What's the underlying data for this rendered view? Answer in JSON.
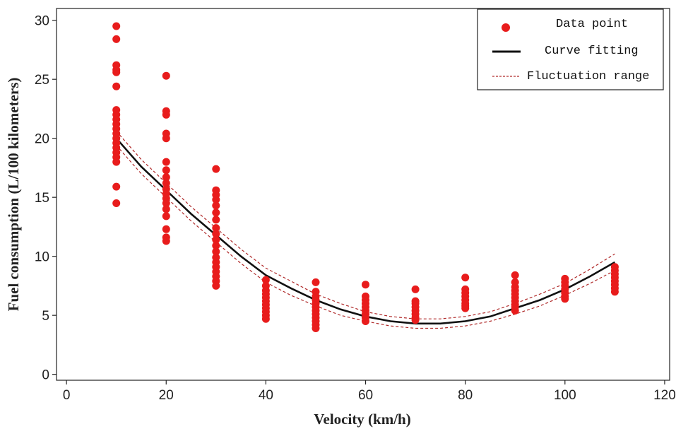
{
  "chart_data": {
    "type": "scatter",
    "xlabel": "Velocity (km/h)",
    "ylabel": "Fuel consumption (L/100 kilometers)",
    "xlim": [
      -2,
      121
    ],
    "ylim": [
      -0.5,
      31
    ],
    "xticks": [
      0,
      20,
      40,
      60,
      80,
      100,
      120
    ],
    "yticks": [
      0,
      5,
      10,
      15,
      20,
      25,
      30
    ],
    "grid": false,
    "legend_position": "top-right",
    "legend": {
      "data_point": "Data point",
      "curve_fitting": "Curve fitting",
      "fluctuation_range": "Fluctuation range"
    },
    "colors": {
      "points": "#e81c1c",
      "curve": "#111111",
      "band": "#b02a2a"
    },
    "series": [
      {
        "name": "Data point",
        "kind": "points",
        "points": [
          [
            10,
            29.5
          ],
          [
            10,
            28.4
          ],
          [
            10,
            26.2
          ],
          [
            10,
            25.8
          ],
          [
            10,
            25.6
          ],
          [
            10,
            24.4
          ],
          [
            10,
            22.4
          ],
          [
            10,
            22.0
          ],
          [
            10,
            21.6
          ],
          [
            10,
            21.2
          ],
          [
            10,
            20.8
          ],
          [
            10,
            20.4
          ],
          [
            10,
            20.0
          ],
          [
            10,
            19.6
          ],
          [
            10,
            19.2
          ],
          [
            10,
            18.8
          ],
          [
            10,
            18.4
          ],
          [
            10,
            18.0
          ],
          [
            10,
            15.9
          ],
          [
            10,
            14.5
          ],
          [
            20,
            25.3
          ],
          [
            20,
            22.3
          ],
          [
            20,
            22.0
          ],
          [
            20,
            20.4
          ],
          [
            20,
            20.0
          ],
          [
            20,
            18.0
          ],
          [
            20,
            17.3
          ],
          [
            20,
            16.7
          ],
          [
            20,
            16.2
          ],
          [
            20,
            15.7
          ],
          [
            20,
            15.3
          ],
          [
            20,
            14.9
          ],
          [
            20,
            14.5
          ],
          [
            20,
            14.0
          ],
          [
            20,
            13.4
          ],
          [
            20,
            12.3
          ],
          [
            20,
            11.6
          ],
          [
            20,
            11.3
          ],
          [
            30,
            17.4
          ],
          [
            30,
            15.6
          ],
          [
            30,
            15.2
          ],
          [
            30,
            14.8
          ],
          [
            30,
            14.3
          ],
          [
            30,
            13.7
          ],
          [
            30,
            13.1
          ],
          [
            30,
            12.4
          ],
          [
            30,
            11.9
          ],
          [
            30,
            11.4
          ],
          [
            30,
            10.9
          ],
          [
            30,
            10.4
          ],
          [
            30,
            9.9
          ],
          [
            30,
            9.5
          ],
          [
            30,
            9.1
          ],
          [
            30,
            8.7
          ],
          [
            30,
            8.3
          ],
          [
            30,
            7.9
          ],
          [
            30,
            7.5
          ],
          [
            40,
            8.0
          ],
          [
            40,
            7.5
          ],
          [
            40,
            7.1
          ],
          [
            40,
            6.8
          ],
          [
            40,
            6.5
          ],
          [
            40,
            6.2
          ],
          [
            40,
            5.9
          ],
          [
            40,
            5.6
          ],
          [
            40,
            5.3
          ],
          [
            40,
            5.0
          ],
          [
            40,
            4.7
          ],
          [
            50,
            7.8
          ],
          [
            50,
            7.0
          ],
          [
            50,
            6.6
          ],
          [
            50,
            6.3
          ],
          [
            50,
            6.0
          ],
          [
            50,
            5.7
          ],
          [
            50,
            5.4
          ],
          [
            50,
            5.1
          ],
          [
            50,
            4.8
          ],
          [
            50,
            4.5
          ],
          [
            50,
            4.2
          ],
          [
            50,
            3.9
          ],
          [
            60,
            7.6
          ],
          [
            60,
            6.6
          ],
          [
            60,
            6.3
          ],
          [
            60,
            6.0
          ],
          [
            60,
            5.7
          ],
          [
            60,
            5.4
          ],
          [
            60,
            5.1
          ],
          [
            60,
            4.8
          ],
          [
            60,
            4.5
          ],
          [
            70,
            7.2
          ],
          [
            70,
            6.2
          ],
          [
            70,
            6.0
          ],
          [
            70,
            5.7
          ],
          [
            70,
            5.4
          ],
          [
            70,
            5.1
          ],
          [
            70,
            4.8
          ],
          [
            70,
            4.6
          ],
          [
            80,
            8.2
          ],
          [
            80,
            7.2
          ],
          [
            80,
            6.9
          ],
          [
            80,
            6.6
          ],
          [
            80,
            6.3
          ],
          [
            80,
            6.0
          ],
          [
            80,
            5.8
          ],
          [
            80,
            5.6
          ],
          [
            90,
            8.4
          ],
          [
            90,
            7.8
          ],
          [
            90,
            7.4
          ],
          [
            90,
            7.1
          ],
          [
            90,
            6.8
          ],
          [
            90,
            6.5
          ],
          [
            90,
            6.2
          ],
          [
            90,
            5.9
          ],
          [
            90,
            5.7
          ],
          [
            90,
            5.4
          ],
          [
            100,
            8.1
          ],
          [
            100,
            7.8
          ],
          [
            100,
            7.5
          ],
          [
            100,
            7.2
          ],
          [
            100,
            6.9
          ],
          [
            100,
            6.6
          ],
          [
            100,
            6.4
          ],
          [
            110,
            9.1
          ],
          [
            110,
            8.8
          ],
          [
            110,
            8.5
          ],
          [
            110,
            8.2
          ],
          [
            110,
            7.9
          ],
          [
            110,
            7.6
          ],
          [
            110,
            7.3
          ],
          [
            110,
            7.0
          ]
        ]
      },
      {
        "name": "Curve fitting",
        "kind": "line",
        "x": [
          10,
          15,
          20,
          25,
          30,
          35,
          40,
          45,
          50,
          55,
          60,
          65,
          70,
          75,
          80,
          85,
          90,
          95,
          100,
          105,
          110
        ],
        "y": [
          20.0,
          17.6,
          15.6,
          13.6,
          11.8,
          10.0,
          8.4,
          7.3,
          6.3,
          5.5,
          4.9,
          4.5,
          4.3,
          4.3,
          4.5,
          4.9,
          5.6,
          6.3,
          7.2,
          8.3,
          9.5
        ]
      },
      {
        "name": "Fluctuation range",
        "kind": "band",
        "x": [
          10,
          15,
          20,
          25,
          30,
          35,
          40,
          45,
          50,
          55,
          60,
          65,
          70,
          75,
          80,
          85,
          90,
          95,
          100,
          105,
          110
        ],
        "upper": [
          20.6,
          18.2,
          16.2,
          14.2,
          12.4,
          10.6,
          9.0,
          7.9,
          6.8,
          6.0,
          5.3,
          4.9,
          4.7,
          4.7,
          4.9,
          5.3,
          6.0,
          6.8,
          7.7,
          8.9,
          10.2
        ],
        "lower": [
          19.4,
          17.0,
          15.0,
          13.0,
          11.2,
          9.4,
          7.8,
          6.7,
          5.8,
          5.0,
          4.5,
          4.1,
          3.9,
          3.9,
          4.1,
          4.5,
          5.1,
          5.8,
          6.7,
          7.7,
          8.8
        ]
      }
    ]
  }
}
